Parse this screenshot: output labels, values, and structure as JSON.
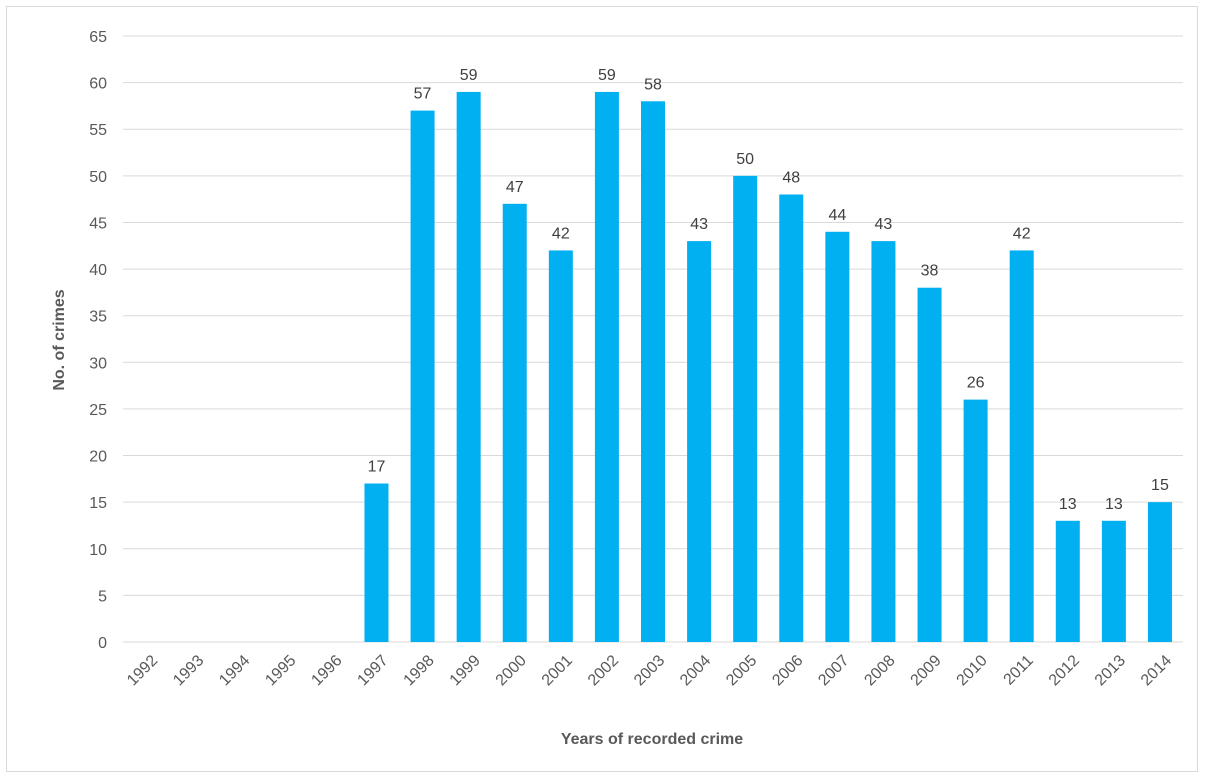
{
  "chart_data": {
    "type": "bar",
    "title": "",
    "xlabel": "Years of recorded crime",
    "ylabel": "No. of crimes",
    "categories": [
      "1992",
      "1993",
      "1994",
      "1995",
      "1996",
      "1997",
      "1998",
      "1999",
      "2000",
      "2001",
      "2002",
      "2003",
      "2004",
      "2005",
      "2006",
      "2007",
      "2008",
      "2009",
      "2010",
      "2011",
      "2012",
      "2013",
      "2014"
    ],
    "values": [
      0,
      0,
      0,
      0,
      0,
      17,
      57,
      59,
      47,
      42,
      59,
      58,
      43,
      50,
      48,
      44,
      43,
      38,
      26,
      42,
      13,
      13,
      15
    ],
    "data_labels": [
      "",
      "",
      "",
      "",
      "",
      "17",
      "57",
      "59",
      "47",
      "42",
      "59",
      "58",
      "43",
      "50",
      "48",
      "44",
      "43",
      "38",
      "26",
      "42",
      "13",
      "13",
      "15"
    ],
    "ylim": [
      0,
      65
    ],
    "yticks": [
      0,
      5,
      10,
      15,
      20,
      25,
      30,
      35,
      40,
      45,
      50,
      55,
      60,
      65
    ],
    "grid": true,
    "legend": "none",
    "bar_color": "#00b0f0",
    "grid_color": "#d9d9d9",
    "text_color": "#595959"
  }
}
